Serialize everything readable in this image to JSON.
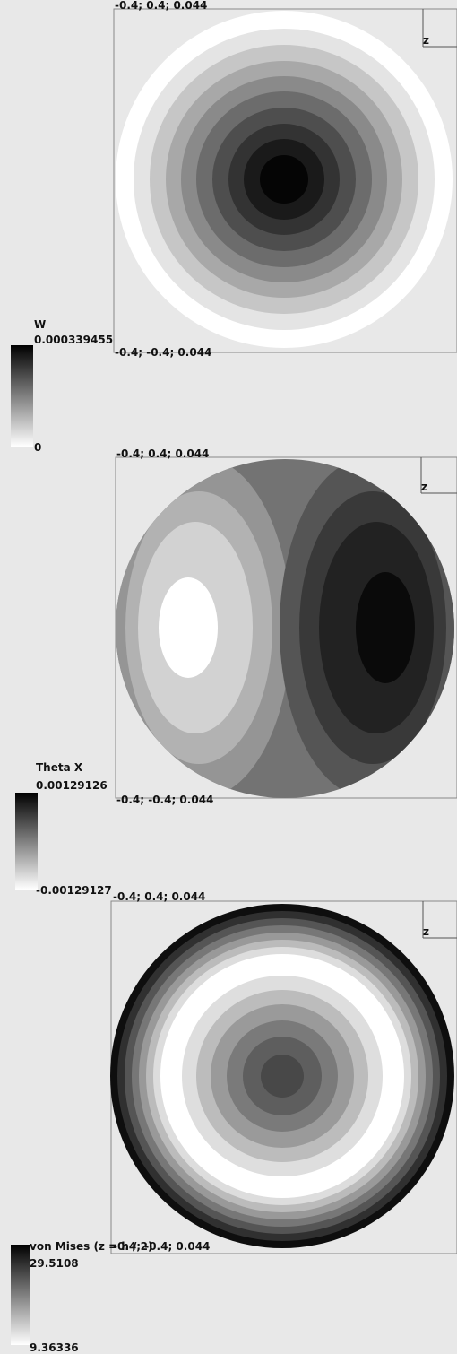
{
  "panels": [
    {
      "title": "W",
      "max_label": "0.000339455",
      "min_label": "0",
      "corner_top": "-0.4; 0.4; 0.044",
      "corner_bottom": "-0.4; -0.4; 0.044",
      "axis_label": "z"
    },
    {
      "title": "Theta X",
      "max_label": "0.00129126",
      "min_label": "-0.00129127",
      "corner_top": "-0.4; 0.4; 0.044",
      "corner_bottom": "-0.4; -0.4; 0.044",
      "axis_label": "z"
    },
    {
      "title": "von Mises (z = h / 2)",
      "max_label": "29.5108",
      "min_label": "9.36336",
      "corner_top": "-0.4; 0.4; 0.044",
      "corner_bottom": "-0.4; -0.4; 0.044",
      "axis_label": "z"
    }
  ]
}
